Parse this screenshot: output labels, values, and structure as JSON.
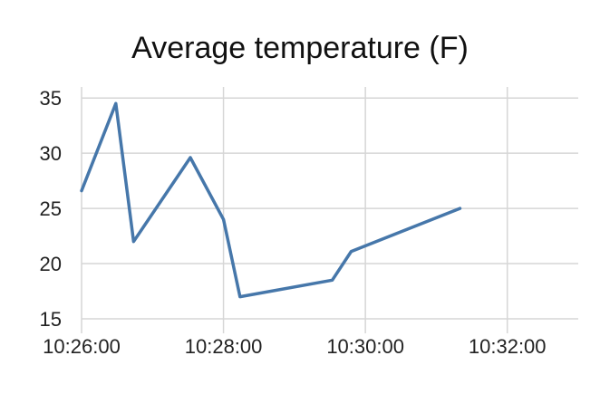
{
  "colors": {
    "series": "#4677aa",
    "grid": "#d6d6d6",
    "text": "#222222"
  },
  "chart_data": {
    "type": "line",
    "title": "Average temperature (F)",
    "xlabel": "",
    "ylabel": "",
    "x_type": "time",
    "xlim": [
      "10:26:00",
      "10:33:00"
    ],
    "ylim": [
      15,
      36
    ],
    "grid": true,
    "legend": "none",
    "x_ticks": [
      "10:26:00",
      "10:28:00",
      "10:30:00",
      "10:32:00"
    ],
    "y_ticks": [
      15,
      20,
      25,
      30,
      35
    ],
    "series": [
      {
        "points": [
          {
            "x": "10:26:00",
            "y": 26.6
          },
          {
            "x": "10:26:29",
            "y": 34.5
          },
          {
            "x": "10:26:44",
            "y": 22.0
          },
          {
            "x": "10:27:32",
            "y": 29.6
          },
          {
            "x": "10:28:00",
            "y": 24.0
          },
          {
            "x": "10:28:14",
            "y": 17.0
          },
          {
            "x": "10:29:32",
            "y": 18.5
          },
          {
            "x": "10:29:48",
            "y": 21.1
          },
          {
            "x": "10:31:20",
            "y": 25.0
          }
        ]
      }
    ]
  }
}
